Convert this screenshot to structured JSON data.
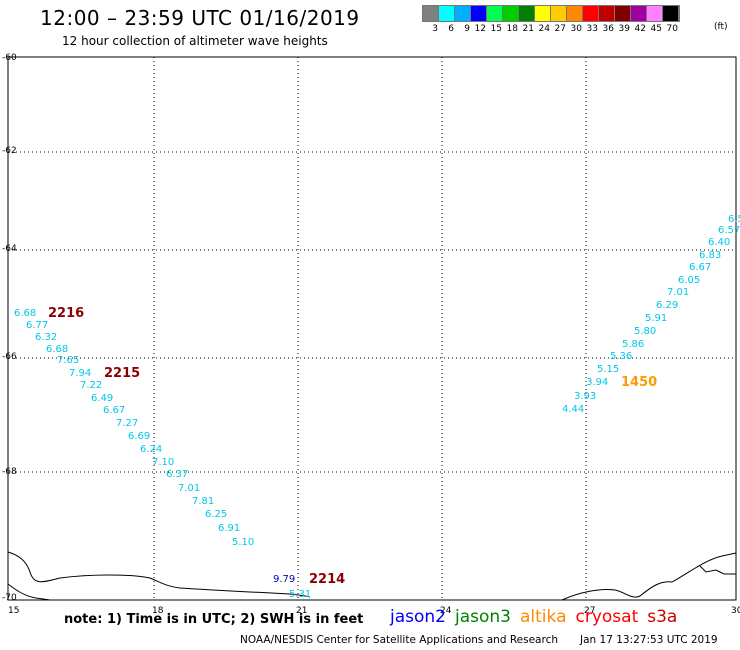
{
  "header": {
    "title": "12:00 – 23:59 UTC 01/16/2019",
    "subtitle": "12 hour collection of altimeter wave heights"
  },
  "legend": {
    "colors": [
      "#808080",
      "#00ffff",
      "#00b0ff",
      "#0000ff",
      "#00ff50",
      "#00d000",
      "#008000",
      "#ffff00",
      "#ffcc00",
      "#ff8800",
      "#ff0000",
      "#c00000",
      "#800000",
      "#a000a0",
      "#ff80ff",
      "#000000"
    ],
    "labels": [
      "3",
      "6",
      "9",
      "12",
      "15",
      "18",
      "21",
      "24",
      "27",
      "30",
      "33",
      "36",
      "39",
      "42",
      "45",
      "70"
    ],
    "unit": "(ft)"
  },
  "axes": {
    "y_labels": [
      "-60",
      "-62",
      "-64",
      "-66",
      "-68",
      "-70"
    ],
    "x_labels": [
      "15",
      "18",
      "21",
      "24",
      "27",
      "30"
    ]
  },
  "tracks": {
    "west_values": [
      "6.68",
      "6.77",
      "6.32",
      "6.68",
      "7.65",
      "7.94",
      "7.22",
      "6.49",
      "6.67",
      "7.27",
      "6.69",
      "6.24",
      "7.10",
      "6.37",
      "7.01",
      "7.81",
      "6.25",
      "6.91",
      "5.10"
    ],
    "west_times": [
      "2216",
      "2215"
    ],
    "mid_values": [
      "9.79",
      "5.31"
    ],
    "mid_time": "2214",
    "east_values": [
      "4.44",
      "3.93",
      "3.94",
      "5.15",
      "5.36",
      "5.86",
      "5.80",
      "5.91",
      "6.29",
      "7.01",
      "6.05",
      "6.67",
      "6.83",
      "6.40",
      "6.57",
      "6.5"
    ],
    "east_time": "1450",
    "colors": {
      "track": "#00c8e8",
      "time_red": "#8b0000",
      "time_orange": "#ff9900"
    }
  },
  "footer": {
    "note": "note: 1) Time is in UTC; 2) SWH is in feet",
    "satellites": [
      {
        "name": "jason2",
        "color": "#0000ff"
      },
      {
        "name": "jason3",
        "color": "#008000"
      },
      {
        "name": "altika",
        "color": "#ff8800"
      },
      {
        "name": "cryosat",
        "color": "#ff0000"
      },
      {
        "name": "s3a",
        "color": "#cc0000"
      }
    ],
    "credit": "NOAA/NESDIS Center for Satellite Applications and Research",
    "timestamp": "Jan 17 13:27:53 UTC 2019"
  }
}
